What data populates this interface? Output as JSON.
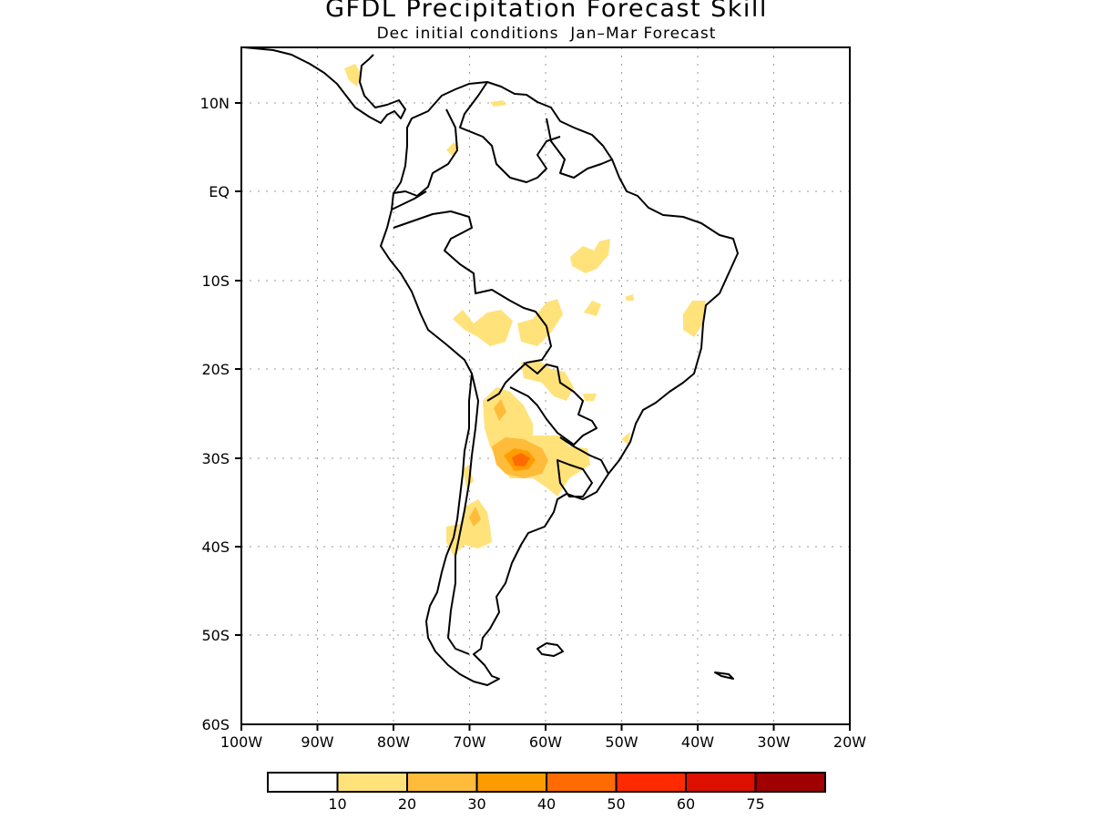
{
  "title": "GFDL Precipitation Forecast Skill",
  "subtitle": "Dec initial conditions  Jan–Mar Forecast",
  "map": {
    "region": "South America",
    "lon_range": [
      -100,
      -20
    ],
    "lat_range": [
      -60,
      15
    ],
    "lat_ticks": [
      "10N",
      "EQ",
      "10S",
      "20S",
      "30S",
      "40S",
      "50S",
      "60S"
    ],
    "lon_ticks": [
      "100W",
      "90W",
      "80W",
      "70W",
      "60W",
      "50W",
      "40W",
      "30W",
      "20W"
    ],
    "grid": "dotted"
  },
  "colorbar": {
    "colors": [
      "#ffffff",
      "#ffe27a",
      "#ffbb3a",
      "#ff9c00",
      "#ff6b00",
      "#ff2a00",
      "#dd1000",
      "#a00000"
    ],
    "labels": [
      "10",
      "20",
      "30",
      "40",
      "50",
      "60",
      "75"
    ]
  },
  "skill_regions": [
    {
      "name": "central-argentina",
      "level": "10-20"
    },
    {
      "name": "central-argentina-core",
      "level": "20-30"
    },
    {
      "name": "central-argentina-peak",
      "level": "30-40"
    },
    {
      "name": "chile-patagonia",
      "level": "10-20"
    },
    {
      "name": "bolivia-paraguay",
      "level": "10-20"
    },
    {
      "name": "brazil-central",
      "level": "10-20"
    },
    {
      "name": "brazil-bahia",
      "level": "10-20"
    },
    {
      "name": "central-america",
      "level": "10-20"
    }
  ]
}
